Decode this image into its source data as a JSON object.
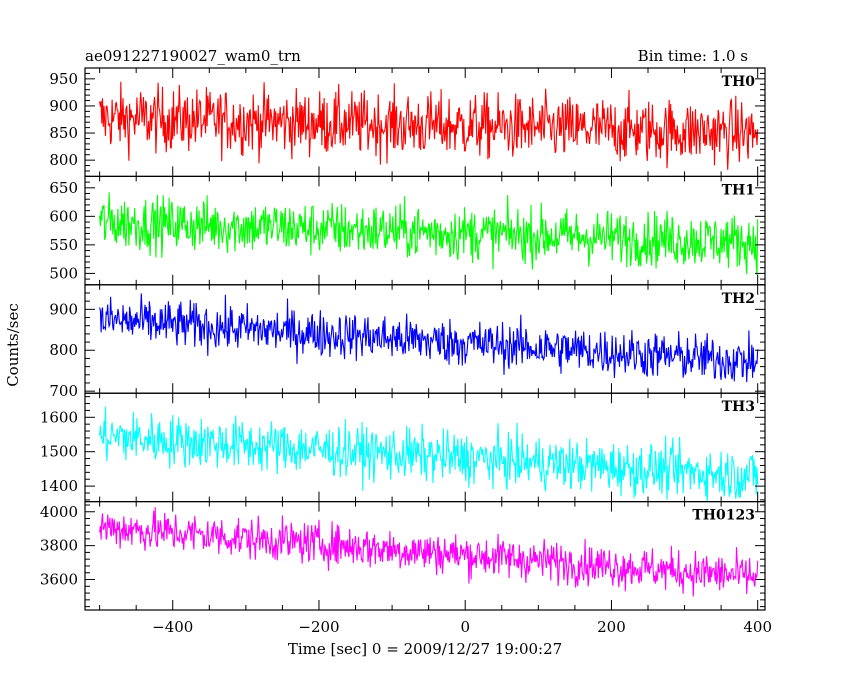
{
  "chart_data": {
    "type": "line",
    "title": "ae091227190027_wam0_trn",
    "bin_time_label": "Bin time: 1.0 s",
    "xlabel": "Time [sec] 0 = 2009/12/27 19:00:27",
    "ylabel": "Counts/sec",
    "xlim": [
      -520,
      410
    ],
    "xticks": [
      -400,
      -200,
      0,
      200,
      400
    ],
    "bin_time_s": 1.0,
    "x_range": [
      -500,
      400
    ],
    "grid": false,
    "panels": [
      {
        "name": "TH0",
        "color": "#ff0000",
        "ylim": [
          770,
          970
        ],
        "yticks": [
          800,
          850,
          900,
          950
        ],
        "trend_start": 878,
        "trend_end": 850,
        "noise_sigma": 30
      },
      {
        "name": "TH1",
        "color": "#00ff00",
        "ylim": [
          480,
          670
        ],
        "yticks": [
          500,
          550,
          600,
          650
        ],
        "trend_start": 590,
        "trend_end": 555,
        "noise_sigma": 24
      },
      {
        "name": "TH2",
        "color": "#0000ff",
        "ylim": [
          695,
          960
        ],
        "yticks": [
          700,
          800,
          900
        ],
        "trend_start": 875,
        "trend_end": 772,
        "noise_sigma": 29
      },
      {
        "name": "TH3",
        "color": "#00ffff",
        "ylim": [
          1355,
          1670
        ],
        "yticks": [
          1400,
          1500,
          1600
        ],
        "trend_start": 1545,
        "trend_end": 1430,
        "noise_sigma": 38
      },
      {
        "name": "TH0123",
        "color": "#ff00ff",
        "ylim": [
          3420,
          4060
        ],
        "yticks": [
          3600,
          3800,
          4000
        ],
        "trend_start": 3910,
        "trend_end": 3615,
        "noise_sigma": 62
      }
    ]
  }
}
